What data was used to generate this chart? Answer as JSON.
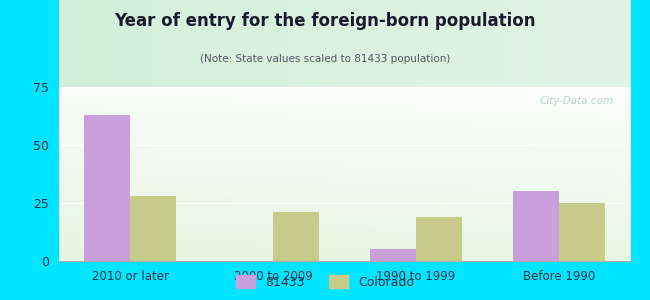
{
  "title": "Year of entry for the foreign-born population",
  "subtitle": "(Note: State values scaled to 81433 population)",
  "categories": [
    "2010 or later",
    "2000 to 2009",
    "1990 to 1999",
    "Before 1990"
  ],
  "values_81433": [
    63,
    0,
    5,
    30
  ],
  "values_colorado": [
    28,
    21,
    19,
    25
  ],
  "color_81433": "#c9a0dc",
  "color_colorado": "#c8cc8a",
  "ylim": [
    0,
    75
  ],
  "yticks": [
    0,
    25,
    50,
    75
  ],
  "background_outer": "#00e5ff",
  "legend_label_81433": "81433",
  "legend_label_colorado": "Colorado",
  "bar_width": 0.32,
  "watermark": "City-Data.com",
  "title_color": "#1a1a2e",
  "subtitle_color": "#555566"
}
